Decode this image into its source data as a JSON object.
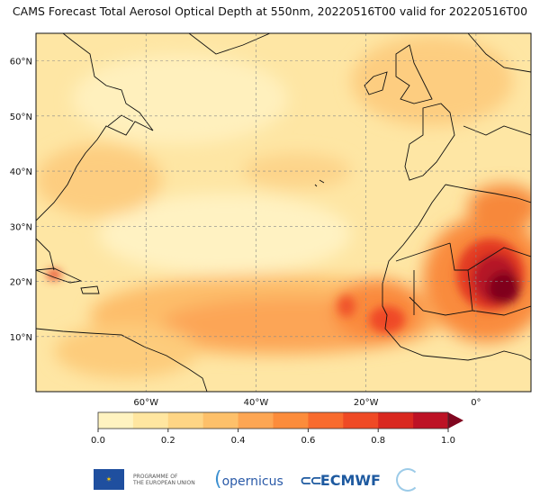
{
  "title": "CAMS Forecast Total Aerosol Optical Depth at 550nm, 20220516T00 valid for 20220516T00",
  "map": {
    "extent": {
      "lon": [
        -80,
        10
      ],
      "lat": [
        0,
        65
      ]
    },
    "lon_ticks": [
      {
        "value": -60,
        "label": "60°W"
      },
      {
        "value": -40,
        "label": "40°W"
      },
      {
        "value": -20,
        "label": "20°W"
      },
      {
        "value": 0,
        "label": "0°"
      }
    ],
    "lat_ticks": [
      {
        "value": 10,
        "label": "10°N"
      },
      {
        "value": 20,
        "label": "20°N"
      },
      {
        "value": 30,
        "label": "30°N"
      },
      {
        "value": 40,
        "label": "40°N"
      },
      {
        "value": 50,
        "label": "50°N"
      },
      {
        "value": 60,
        "label": "60°N"
      }
    ],
    "gridlines": true
  },
  "colorbar": {
    "levels": [
      0.0,
      0.1,
      0.2,
      0.3,
      0.4,
      0.5,
      0.6,
      0.7,
      0.8,
      0.9,
      1.0
    ],
    "colors": [
      "#fff3c0",
      "#ffe6a0",
      "#fed585",
      "#fdc06a",
      "#fda653",
      "#fc8c3b",
      "#f86b2e",
      "#ef4a25",
      "#d9281f",
      "#bd1225"
    ],
    "extend_color": "#80061f",
    "tick_labels": [
      "0.0",
      "0.2",
      "0.4",
      "0.6",
      "0.8",
      "1.0"
    ]
  },
  "footer": {
    "eu_text_line1": "PROGRAMME OF",
    "eu_text_line2": "THE EUROPEAN UNION",
    "copernicus": "opernicus",
    "ecmwf": "ECMWF"
  }
}
